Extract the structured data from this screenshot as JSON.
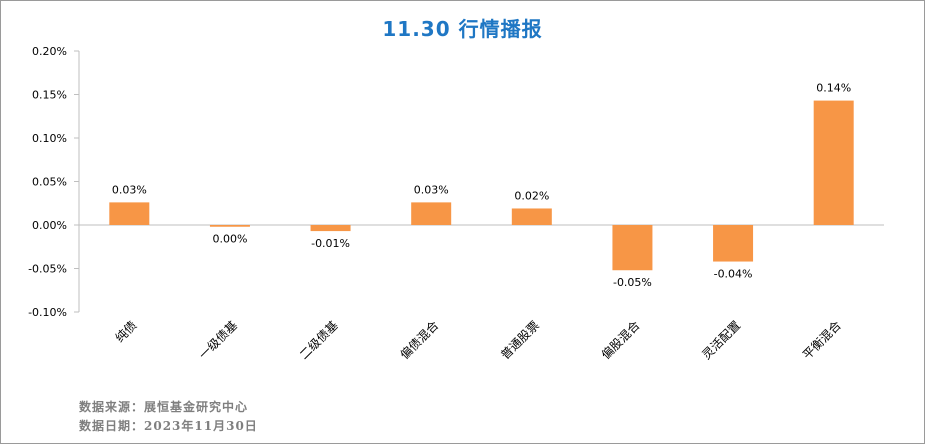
{
  "footnotes": {
    "source": "数据来源：展恒基金研究中心",
    "date": "数据日期：2023年11月30日"
  },
  "chart_data": {
    "type": "bar",
    "title": "11.30 行情播报",
    "xlabel": "",
    "ylabel": "",
    "ylim": [
      -0.1,
      0.2
    ],
    "yticks": [
      -0.1,
      -0.05,
      0.0,
      0.05,
      0.1,
      0.15,
      0.2
    ],
    "ytick_labels": [
      "-0.10%",
      "-0.05%",
      "0.00%",
      "0.05%",
      "0.10%",
      "0.15%",
      "0.20%"
    ],
    "unit": "%",
    "grid": false,
    "bar_color": "#f79646",
    "categories": [
      "纯债",
      "一级债基",
      "二级债基",
      "偏债混合",
      "普通股票",
      "偏股混合",
      "灵活配置",
      "平衡混合"
    ],
    "values": [
      0.026,
      -0.002,
      -0.007,
      0.026,
      0.019,
      -0.052,
      -0.042,
      0.143
    ],
    "value_labels": [
      "0.03%",
      "0.00%",
      "-0.01%",
      "0.03%",
      "0.02%",
      "-0.05%",
      "-0.04%",
      "0.14%"
    ]
  }
}
